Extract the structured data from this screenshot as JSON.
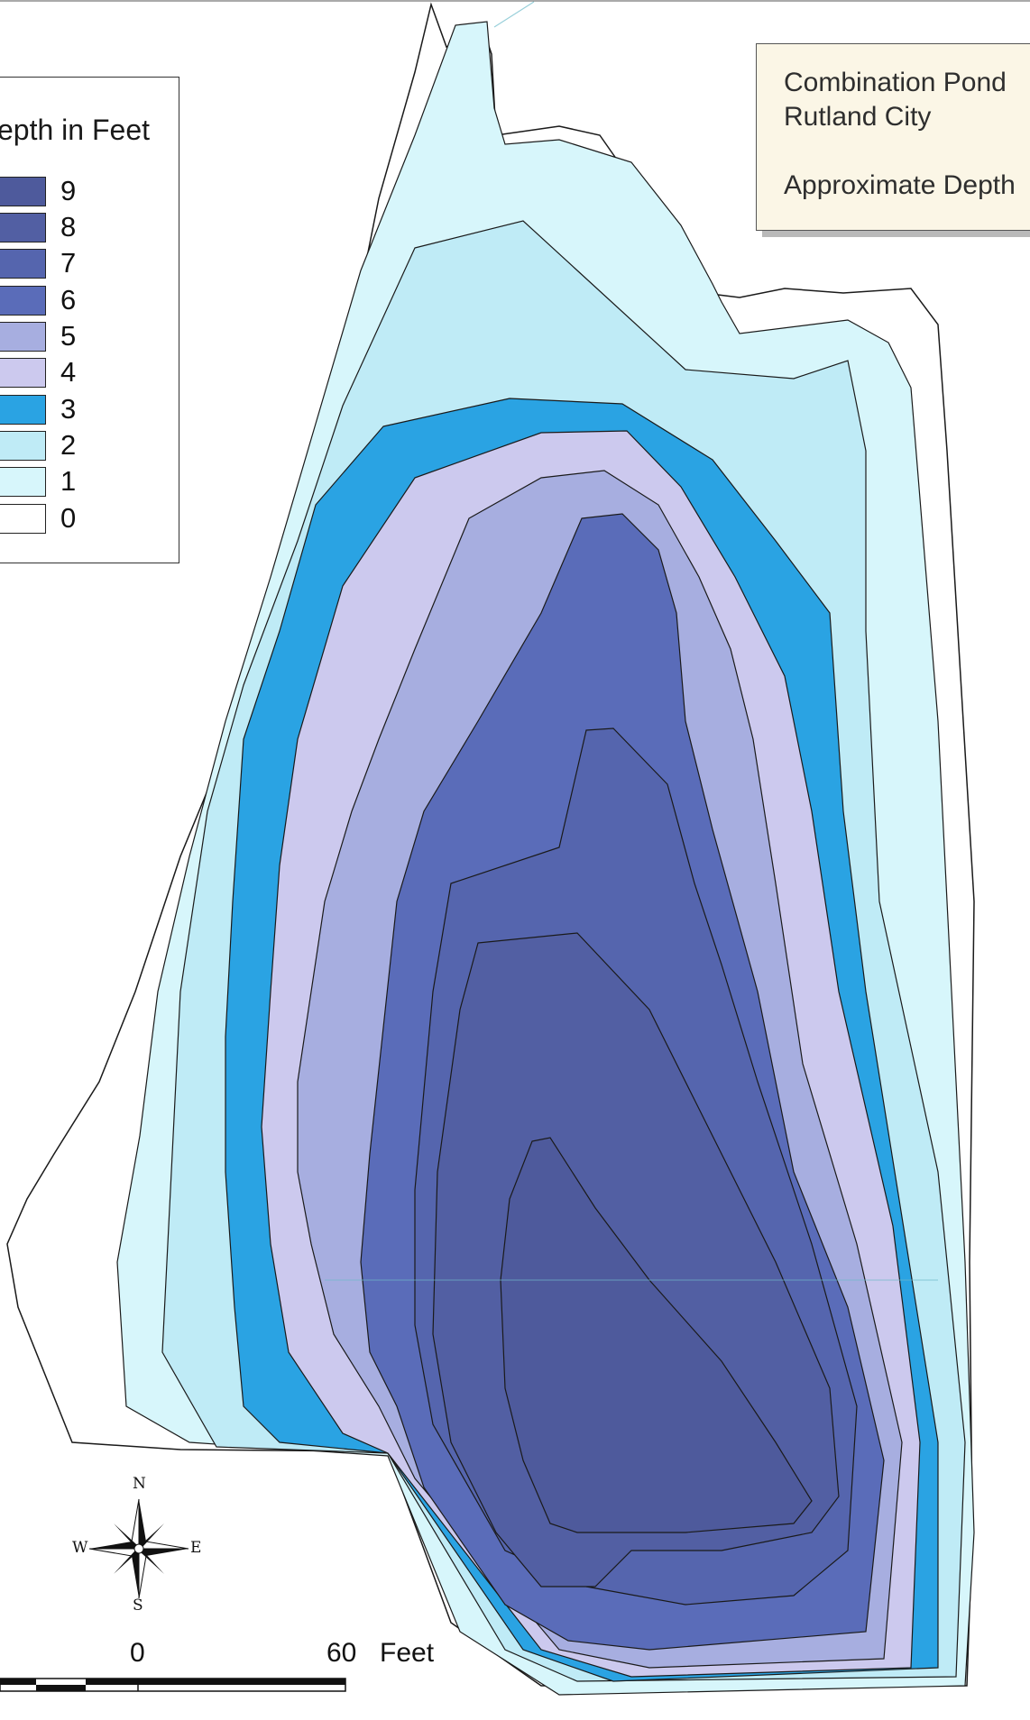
{
  "title_box": {
    "line1": "Combination Pond",
    "line2": "Rutland City",
    "line3": "Approximate Depth"
  },
  "legend": {
    "title": "epth in Feet",
    "items": [
      {
        "label": "9",
        "color": "#4e5a9c"
      },
      {
        "label": "8",
        "color": "#525fa3"
      },
      {
        "label": "7",
        "color": "#5565ae"
      },
      {
        "label": "6",
        "color": "#5a6cb9"
      },
      {
        "label": "5",
        "color": "#a7aee0"
      },
      {
        "label": "4",
        "color": "#ccc9ee"
      },
      {
        "label": "3",
        "color": "#2aa3e3"
      },
      {
        "label": "2",
        "color": "#bfebf6"
      },
      {
        "label": "1",
        "color": "#d7f6fb"
      },
      {
        "label": "0",
        "color": "#ffffff"
      }
    ]
  },
  "compass": {
    "n": "N",
    "s": "S",
    "e": "E",
    "w": "W"
  },
  "scale": {
    "zero": "0",
    "max": "60",
    "unit": "Feet"
  }
}
